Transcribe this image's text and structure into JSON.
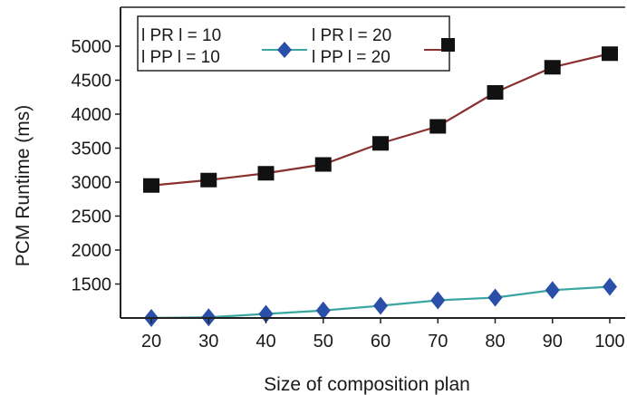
{
  "chart_data": {
    "type": "line",
    "title": "",
    "xlabel": "Size of composition plan",
    "ylabel": "PCM Runtime (ms)",
    "x": [
      20,
      30,
      40,
      50,
      60,
      70,
      80,
      90,
      100
    ],
    "xlim": [
      20,
      100
    ],
    "ylim": [
      1000,
      5200
    ],
    "yticks": [
      1500,
      2000,
      2500,
      3000,
      3500,
      4000,
      4500,
      5000
    ],
    "grid": false,
    "legend_position": "top-left",
    "series": [
      {
        "name_lines": [
          "l PR l = 10",
          "l PP l = 10"
        ],
        "marker": "diamond",
        "marker_color": "#2a4fa8",
        "line_color": "#3aa6a0",
        "values": [
          1000,
          1010,
          1060,
          1110,
          1180,
          1260,
          1300,
          1410,
          1460
        ]
      },
      {
        "name_lines": [
          "l PR l = 20",
          "l PP l = 20"
        ],
        "marker": "square",
        "marker_color": "#111111",
        "line_color": "#8a3030",
        "values": [
          2950,
          3030,
          3130,
          3260,
          3570,
          3820,
          4320,
          4690,
          4890
        ]
      }
    ]
  }
}
